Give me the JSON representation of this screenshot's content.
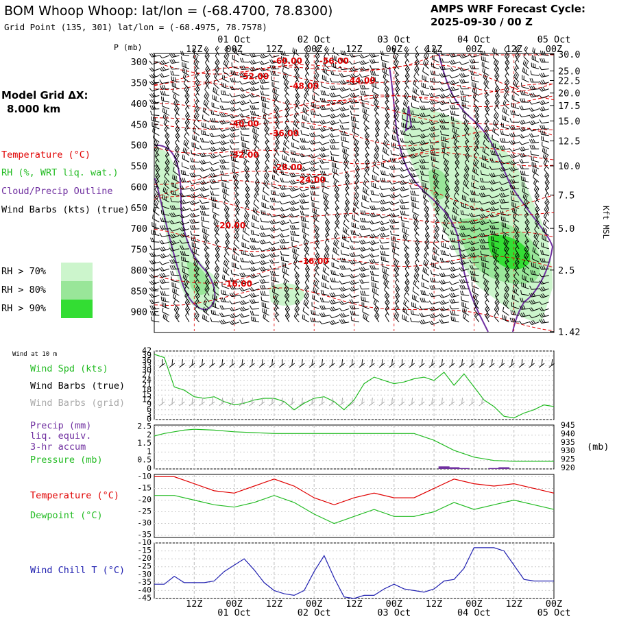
{
  "header": {
    "title": "BOM Whoop Whoop:  lat/lon = (-68.4700, 78.8300)",
    "grid_point": "Grid Point (135, 301) lat/lon = (-68.4975, 78.7578)",
    "cycle_label": "AMPS WRF Forecast Cycle:",
    "cycle_value": "2025-09-30 / 00  Z"
  },
  "model_grid": {
    "label": "Model Grid ΔX:",
    "value": "8.000 km"
  },
  "legend": {
    "temperature": "Temperature (°C)",
    "rh": "RH (%, WRT liq. wat.)",
    "cloud": "Cloud/Precip Outline",
    "wind": "Wind Barbs (kts) (true)",
    "rh_bins": [
      {
        "label": "RH > 70%",
        "color": "#ccf5cc"
      },
      {
        "label": "RH > 80%",
        "color": "#99e699"
      },
      {
        "label": "RH > 90%",
        "color": "#33dd33"
      }
    ]
  },
  "colors": {
    "temp": "#e00000",
    "rh_line": "#22bb22",
    "cloud": "#7030a0",
    "wind_chill": "#2020b0"
  },
  "time_axis": {
    "hours": [
      0,
      12,
      24,
      36,
      48,
      60,
      72,
      84,
      96,
      108,
      120
    ],
    "hour_labels": [
      "",
      "12Z",
      "00Z",
      "12Z",
      "00Z",
      "12Z",
      "00Z",
      "12Z",
      "00Z",
      "12Z",
      "00Z"
    ],
    "date_ticks": [
      {
        "hour": 24,
        "label": "01 Oct"
      },
      {
        "hour": 48,
        "label": "02 Oct"
      },
      {
        "hour": 72,
        "label": "03 Oct"
      },
      {
        "hour": 96,
        "label": "04 Oct"
      },
      {
        "hour": 120,
        "label": "05 Oct"
      }
    ]
  },
  "chart_data": [
    {
      "type": "heatmap",
      "title": "Time-height cross section",
      "ylabel": "P (mb)",
      "y2label": "Kft MSL",
      "pressure_ticks": [
        300,
        350,
        400,
        450,
        500,
        550,
        600,
        650,
        700,
        750,
        800,
        850,
        900
      ],
      "pressure_range": [
        280,
        950
      ],
      "kft_ticks": [
        {
          "p": 282,
          "label": "30.0"
        },
        {
          "p": 322,
          "label": "25.0"
        },
        {
          "p": 345,
          "label": "22.5"
        },
        {
          "p": 375,
          "label": "20.0"
        },
        {
          "p": 405,
          "label": "17.5"
        },
        {
          "p": 442,
          "label": "15.0"
        },
        {
          "p": 490,
          "label": "12.5"
        },
        {
          "p": 550,
          "label": "10.0"
        },
        {
          "p": 620,
          "label": "7.5"
        },
        {
          "p": 700,
          "label": "5.0"
        },
        {
          "p": 800,
          "label": "2.5"
        },
        {
          "p": 948,
          "label": "1.42"
        }
      ],
      "temperature_contours": [
        {
          "label": "-60.00",
          "hour": 40,
          "p": 305
        },
        {
          "label": "-56.00",
          "hour": 54,
          "p": 305
        },
        {
          "label": "-52.00",
          "hour": 30,
          "p": 342
        },
        {
          "label": "-48.00",
          "hour": 45,
          "p": 365
        },
        {
          "label": "-44.00",
          "hour": 62,
          "p": 352
        },
        {
          "label": "-40.00",
          "hour": 27,
          "p": 455
        },
        {
          "label": "-36.00",
          "hour": 39,
          "p": 478
        },
        {
          "label": "-32.00",
          "hour": 27,
          "p": 530
        },
        {
          "label": "-28.00",
          "hour": 40,
          "p": 560
        },
        {
          "label": "-24.00",
          "hour": 47,
          "p": 590
        },
        {
          "label": "-20.00",
          "hour": 23,
          "p": 700
        },
        {
          "label": "-16.00",
          "hour": 48,
          "p": 785
        },
        {
          "label": "-16.00",
          "hour": 25,
          "p": 840
        }
      ]
    },
    {
      "type": "line",
      "title": "Wind at 10 m",
      "labels": [
        "Wind Spd (kts)",
        "Wind Barbs (true)",
        "Wind Barbs (grid)"
      ],
      "yticks": [
        0,
        3,
        6,
        9,
        12,
        15,
        18,
        21,
        24,
        27,
        30,
        33,
        36,
        39,
        42
      ],
      "ylim": [
        0,
        42
      ],
      "x": [
        0,
        3,
        6,
        9,
        12,
        15,
        18,
        21,
        24,
        27,
        30,
        33,
        36,
        39,
        42,
        45,
        48,
        51,
        54,
        57,
        60,
        63,
        66,
        69,
        72,
        75,
        78,
        81,
        84,
        87,
        90,
        93,
        96,
        99,
        102,
        105,
        108,
        111,
        114,
        117,
        120
      ],
      "values": [
        40,
        38,
        20,
        18,
        14,
        13,
        14,
        11,
        9,
        10,
        12,
        13,
        13,
        11,
        6,
        10,
        13,
        14,
        11,
        6,
        12,
        22,
        26,
        24,
        22,
        23,
        25,
        26,
        24,
        29,
        21,
        28,
        20,
        12,
        8,
        2,
        1,
        4,
        6,
        9,
        8
      ]
    },
    {
      "type": "line",
      "labels": [
        "Precip (mm)",
        "liq. equiv.",
        "3-hr accum",
        "Pressure (mb)"
      ],
      "y_left": {
        "label": "Precip",
        "ticks": [
          0.0,
          0.5,
          1.0,
          1.5,
          2.0,
          2.5
        ],
        "range": [
          0,
          2.6
        ]
      },
      "y_right": {
        "label": "(mb)",
        "ticks": [
          920,
          925,
          930,
          935,
          940,
          945
        ],
        "range": [
          919.5,
          945.5
        ]
      },
      "pressure": {
        "x": [
          0,
          3,
          6,
          9,
          12,
          18,
          24,
          30,
          36,
          42,
          48,
          54,
          60,
          66,
          72,
          78,
          84,
          90,
          96,
          102,
          108,
          114,
          120
        ],
        "values": [
          939.0,
          940.5,
          941.5,
          942.5,
          943.0,
          942.5,
          941.5,
          941.0,
          940.5,
          940.5,
          940.5,
          940.5,
          940.5,
          940.5,
          940.5,
          940.5,
          936.5,
          930.5,
          926.5,
          924.5,
          924.0,
          924.0,
          924.0
        ]
      },
      "precip_bars": [
        {
          "hour": 87,
          "value": 0.15
        },
        {
          "hour": 90,
          "value": 0.1
        },
        {
          "hour": 93,
          "value": 0.05
        },
        {
          "hour": 102,
          "value": 0.05
        },
        {
          "hour": 105,
          "value": 0.1
        }
      ]
    },
    {
      "type": "line",
      "labels": [
        "Temperature (°C)",
        "Dewpoint (°C)"
      ],
      "yticks": [
        -10,
        -15,
        -20,
        -25,
        -30,
        -35
      ],
      "ylim": [
        -36,
        -9
      ],
      "x": [
        0,
        6,
        12,
        18,
        24,
        30,
        36,
        42,
        48,
        54,
        60,
        66,
        72,
        78,
        84,
        90,
        96,
        102,
        108,
        114,
        120
      ],
      "series": [
        {
          "name": "Temperature",
          "values": [
            -10,
            -10,
            -13,
            -16,
            -17,
            -14,
            -11,
            -14,
            -19,
            -22,
            -19,
            -17,
            -19,
            -19,
            -15,
            -11,
            -13,
            -14,
            -13,
            -15,
            -17
          ]
        },
        {
          "name": "Dewpoint",
          "values": [
            -18,
            -18,
            -20,
            -22,
            -23,
            -21,
            -18,
            -21,
            -26,
            -30,
            -27,
            -24,
            -27,
            -27,
            -25,
            -21,
            -24,
            -22,
            -20,
            -22,
            -24
          ]
        }
      ]
    },
    {
      "type": "line",
      "labels": [
        "Wind Chill T (°C)"
      ],
      "yticks": [
        -10,
        -15,
        -20,
        -25,
        -30,
        -35,
        -40,
        -45
      ],
      "ylim": [
        -45,
        -10
      ],
      "x": [
        0,
        3,
        6,
        9,
        12,
        15,
        18,
        21,
        24,
        27,
        30,
        33,
        36,
        39,
        42,
        45,
        48,
        51,
        54,
        57,
        60,
        63,
        66,
        69,
        72,
        75,
        78,
        81,
        84,
        87,
        90,
        93,
        96,
        99,
        102,
        105,
        108,
        111,
        114,
        117,
        120
      ],
      "values": [
        -36,
        -36,
        -31,
        -35,
        -35,
        -35,
        -34,
        -28,
        -24,
        -20,
        -27,
        -35,
        -40,
        -42,
        -43,
        -40,
        -28,
        -18,
        -32,
        -44,
        -45,
        -43,
        -43,
        -39,
        -36,
        -39,
        -40,
        -41,
        -39,
        -34,
        -33,
        -26,
        -13,
        -13,
        -13,
        -15,
        -24,
        -33,
        -34,
        -34,
        -34
      ]
    }
  ]
}
